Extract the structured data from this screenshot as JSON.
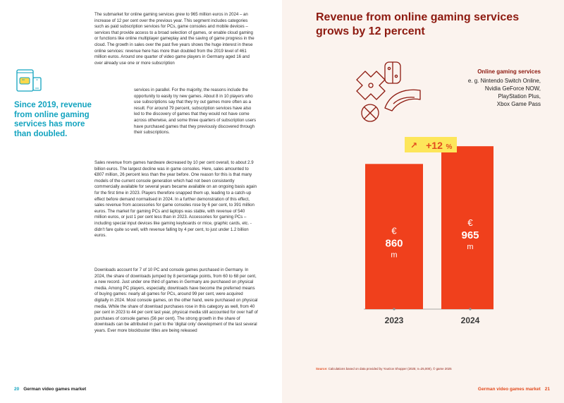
{
  "left_page": {
    "paragraph_1": "The submarket for online gaming services grew to 965 million euros in 2024 – an increase of 12 per cent over the previous year. This segment includes categories such as paid subscription services for PCs, game consoles and mobile devices – services that provide access to a broad selection of games, or enable cloud gaming or functions like online multiplayer gameplay and the saving of game progress in the cloud. The growth in sales over the past five years shows the huge interest in these online services: revenue here has more than doubled from the 2019 level of 461 million euros. Around one quarter of video game players in Germany aged 16 and over already use one or more subscription",
    "paragraph_1_cont": "services in parallel. For the majority, the reasons include the opportunity to easily try new games. About 8 in 10 players who use subscriptions say that they try out games more often as a result. For around 79 percent, subscription services have also led to the discovery of games that they would not have come across otherwise, and some three quarters of subscription users have purchased games that they previously discovered through their subscriptions.",
    "paragraph_2": "Sales revenue from games hardware decreased by 10 per cent overall, to about 2.9 billion euros. The largest decline was in game consoles. Here, sales amounted to €807 million, 26 percent less than the year before. One reason for this is that many models of the current console generation which had not been consistently commercially available for several years became available on an ongoing basis again for the first time in 2023. Players therefore snapped them up, leading to a catch-up effect before demand normalised in 2024. In a further demonstration of this effect, sales revenue from accessories for game consoles rose by 6 per cent, to 391 million euros. The market for gaming PCs and laptops was stable, with revenue of 540 million euros, or just 1 per cent less than in 2023. Accessories for gaming PCs – including special input devices like gaming keyboards or mice, graphic cards, etc. - didn't fare quite so well, with revenue falling by 4 per cent, to just under 1.2 billion euros.",
    "paragraph_3": "Downloads account for 7 of 10 PC and console games purchased in Germany. In 2024, the share of downloads jumped by 8 percentage points, from 60 to 68 per cent, a new record. Just under one third of games in Germany are purchased on physical media. Among PC players, especially, downloads have become the preferred means of buying games: nearly all games for PCs, around 99 per cent, were acquired digitally in 2024. Most console games, on the other hand, were purchased on physical media. While the share of download purchases rose in this category as well, from 40 per cent in 2023 to 44 per cent last year, physical media still accounted for over half of purchases of console games (56 per cent). The strong growth in the share of downloads can be attributed in part to the 'digital only' development of the last several years. Ever more blockbuster titles are being released",
    "pull_quote": "Since 2019, revenue from online gaming services has more than doubled.",
    "footer_page": "20",
    "footer_title": "German video games market"
  },
  "right_page": {
    "title": "Revenue from online gaming services grows by 12 percent",
    "legend_heading": "Online gaming services",
    "legend_lines": [
      "e. g. Nintendo Switch Online,",
      "Nvidia GeForce NOW,",
      "PlayStation Plus,",
      "Xbox Game Pass"
    ],
    "growth_badge_arrow": "↗",
    "growth_badge_value": "+12",
    "growth_badge_unit": "%",
    "source_label": "Source:",
    "source_text": "Calculations based on data provided by YouGov Shopper (2025; n=25,000), © game 2025",
    "footer_title": "German video games market",
    "footer_page": "21"
  },
  "chart_data": {
    "type": "bar",
    "categories": [
      "2023",
      "2024"
    ],
    "values": [
      860,
      965
    ],
    "value_prefix": "€",
    "value_suffix": "m",
    "ylim": [
      0,
      1000
    ],
    "grid": false,
    "legend": "top-right",
    "colors": {
      "bar": "#f0401c",
      "badge": "#fde65a",
      "badge_text": "#e24b1e",
      "axis": "#8f8f8f",
      "year_label": "#3a3a3a"
    }
  },
  "colors": {
    "accent_teal": "#12a3bf",
    "title_dark_red": "#8d1a10",
    "accent_orange": "#e24b1e",
    "right_page_bg": "#fbf3ee"
  }
}
